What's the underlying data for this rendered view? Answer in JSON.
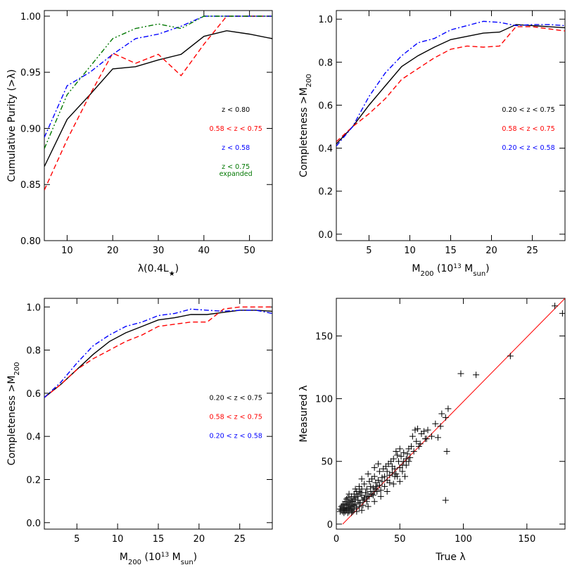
{
  "chart_data": [
    {
      "type": "line",
      "xlim": [
        5,
        55
      ],
      "ylim": [
        0.8,
        1.005
      ],
      "xticks": [
        10,
        20,
        30,
        40,
        50
      ],
      "yticks": [
        0.8,
        0.85,
        0.9,
        0.95,
        1.0
      ],
      "ytick_decimals": 2,
      "xlabel": "λ(0.4L*)",
      "ylabel": "Cumulative Purity (>λ)",
      "series": [
        {
          "name": "z < 0.80",
          "color": "#000000",
          "dash": "",
          "x": [
            5,
            10,
            15,
            20,
            25,
            30,
            35,
            40,
            45,
            50,
            55
          ],
          "y": [
            0.866,
            0.908,
            0.93,
            0.953,
            0.955,
            0.961,
            0.966,
            0.982,
            0.987,
            0.984,
            0.98
          ]
        },
        {
          "name": "0.58 < z < 0.75",
          "color": "#ff0000",
          "dash": "7,4",
          "x": [
            5,
            10,
            15,
            20,
            25,
            30,
            35,
            40,
            45,
            50,
            55
          ],
          "y": [
            0.845,
            0.89,
            0.93,
            0.967,
            0.958,
            0.966,
            0.947,
            0.975,
            1.0,
            1.0,
            1.0
          ]
        },
        {
          "name": "z < 0.58",
          "color": "#0000ff",
          "dash": "7,3,2,3",
          "x": [
            5,
            10,
            15,
            20,
            25,
            30,
            35,
            40,
            45,
            50,
            55
          ],
          "y": [
            0.892,
            0.938,
            0.95,
            0.966,
            0.98,
            0.984,
            0.991,
            1.0,
            1.0,
            1.0,
            1.0
          ]
        },
        {
          "name": "z < 0.75 expanded",
          "color": "#007700",
          "dash": "7,3,2,3,2,3",
          "x": [
            5,
            10,
            15,
            20,
            25,
            30,
            35,
            40,
            45,
            50,
            55
          ],
          "y": [
            0.882,
            0.93,
            0.955,
            0.98,
            0.989,
            0.993,
            0.989,
            1.0,
            1.0,
            1.0,
            1.0
          ]
        }
      ],
      "legend": [
        {
          "text": "z < 0.80",
          "color": "#000000"
        },
        {
          "text": "0.58 < z < 0.75",
          "color": "#ff0000"
        },
        {
          "text": "z < 0.58",
          "color": "#0000ff"
        },
        {
          "text": "z < 0.75",
          "text2": "expanded",
          "color": "#007700"
        }
      ]
    },
    {
      "type": "line",
      "xlim": [
        1,
        29
      ],
      "ylim": [
        -0.03,
        1.04
      ],
      "xticks": [
        5,
        10,
        15,
        20,
        25
      ],
      "yticks": [
        0.0,
        0.2,
        0.4,
        0.6,
        0.8,
        1.0
      ],
      "ytick_decimals": 1,
      "xlabel": "M200 (10^13 Msun)",
      "ylabel": "Completeness >M200",
      "series": [
        {
          "name": "0.20 < z < 0.75",
          "color": "#000000",
          "dash": "",
          "x": [
            1,
            3,
            5,
            7,
            9,
            11,
            13,
            15,
            17,
            19,
            21,
            23,
            25,
            27,
            29
          ],
          "y": [
            0.42,
            0.5,
            0.6,
            0.69,
            0.78,
            0.83,
            0.87,
            0.905,
            0.92,
            0.935,
            0.94,
            0.975,
            0.97,
            0.965,
            0.96
          ]
        },
        {
          "name": "0.58 < z < 0.75",
          "color": "#ff0000",
          "dash": "7,4",
          "x": [
            1,
            3,
            5,
            7,
            9,
            11,
            13,
            15,
            17,
            19,
            21,
            23,
            25,
            27,
            29
          ],
          "y": [
            0.43,
            0.5,
            0.56,
            0.63,
            0.72,
            0.77,
            0.82,
            0.86,
            0.875,
            0.87,
            0.875,
            0.965,
            0.965,
            0.955,
            0.945
          ]
        },
        {
          "name": "0.20 < z < 0.58",
          "color": "#0000ff",
          "dash": "7,3,2,3",
          "x": [
            1,
            3,
            5,
            7,
            9,
            11,
            13,
            15,
            17,
            19,
            21,
            23,
            25,
            27,
            29
          ],
          "y": [
            0.41,
            0.5,
            0.64,
            0.75,
            0.83,
            0.89,
            0.91,
            0.95,
            0.97,
            0.99,
            0.985,
            0.97,
            0.975,
            0.975,
            0.97
          ]
        }
      ],
      "legend": [
        {
          "text": "0.20 < z < 0.75",
          "color": "#000000"
        },
        {
          "text": "0.58 < z < 0.75",
          "color": "#ff0000"
        },
        {
          "text": "0.20 < z < 0.58",
          "color": "#0000ff"
        }
      ]
    },
    {
      "type": "line",
      "xlim": [
        1,
        29
      ],
      "ylim": [
        -0.03,
        1.04
      ],
      "xticks": [
        5,
        10,
        15,
        20,
        25
      ],
      "yticks": [
        0.0,
        0.2,
        0.4,
        0.6,
        0.8,
        1.0
      ],
      "ytick_decimals": 1,
      "xlabel": "M200 (10^13 Msun)",
      "ylabel": "Completeness >M200",
      "series": [
        {
          "name": "0.20 < z < 0.75",
          "color": "#000000",
          "dash": "",
          "x": [
            1,
            3,
            5,
            7,
            9,
            11,
            13,
            15,
            17,
            19,
            21,
            23,
            25,
            27,
            29
          ],
          "y": [
            0.58,
            0.64,
            0.71,
            0.78,
            0.84,
            0.88,
            0.91,
            0.94,
            0.95,
            0.965,
            0.965,
            0.975,
            0.985,
            0.985,
            0.98
          ]
        },
        {
          "name": "0.58 < z < 0.75",
          "color": "#ff0000",
          "dash": "7,4",
          "x": [
            1,
            3,
            5,
            7,
            9,
            11,
            13,
            15,
            17,
            19,
            21,
            23,
            25,
            27,
            29
          ],
          "y": [
            0.58,
            0.64,
            0.71,
            0.76,
            0.8,
            0.84,
            0.87,
            0.91,
            0.92,
            0.93,
            0.93,
            0.99,
            1.0,
            1.0,
            1.0
          ]
        },
        {
          "name": "0.20 < z < 0.58",
          "color": "#0000ff",
          "dash": "7,3,2,3",
          "x": [
            1,
            3,
            5,
            7,
            9,
            11,
            13,
            15,
            17,
            19,
            21,
            23,
            25,
            27,
            29
          ],
          "y": [
            0.58,
            0.65,
            0.74,
            0.82,
            0.87,
            0.91,
            0.93,
            0.96,
            0.97,
            0.99,
            0.985,
            0.98,
            0.985,
            0.985,
            0.97
          ]
        }
      ],
      "legend": [
        {
          "text": "0.20 < z < 0.75",
          "color": "#000000"
        },
        {
          "text": "0.58 < z < 0.75",
          "color": "#ff0000"
        },
        {
          "text": "0.20 < z < 0.58",
          "color": "#0000ff"
        }
      ]
    },
    {
      "type": "scatter",
      "xlim": [
        0,
        180
      ],
      "ylim": [
        -4,
        180
      ],
      "xticks": [
        0,
        50,
        100,
        150
      ],
      "yticks": [
        0,
        50,
        100,
        150
      ],
      "ytick_decimals": 0,
      "xlabel": "True λ",
      "ylabel": "Measured λ",
      "marker": "+",
      "color": "#000000",
      "reference_line": {
        "x": [
          5,
          180
        ],
        "y": [
          0,
          180
        ],
        "color": "#ff0000"
      },
      "points": [
        [
          172,
          174
        ],
        [
          178,
          168
        ],
        [
          137,
          134
        ],
        [
          110,
          119
        ],
        [
          98,
          120
        ],
        [
          88,
          92
        ],
        [
          82,
          78
        ],
        [
          83,
          88
        ],
        [
          86,
          85
        ],
        [
          80,
          69
        ],
        [
          87,
          58
        ],
        [
          86,
          19
        ],
        [
          75,
          70
        ],
        [
          70,
          68
        ],
        [
          66,
          64
        ],
        [
          64,
          76
        ],
        [
          62,
          75
        ],
        [
          60,
          70
        ],
        [
          56,
          56
        ],
        [
          58,
          53
        ],
        [
          52,
          47
        ],
        [
          50,
          60
        ],
        [
          48,
          55
        ],
        [
          55,
          47
        ],
        [
          54,
          38
        ],
        [
          50,
          34
        ],
        [
          47,
          40
        ],
        [
          46,
          38
        ],
        [
          44,
          41
        ],
        [
          42,
          33
        ],
        [
          40,
          35
        ],
        [
          38,
          30
        ],
        [
          36,
          37
        ],
        [
          35,
          27
        ],
        [
          32,
          30
        ],
        [
          30,
          26
        ],
        [
          28,
          24
        ],
        [
          27,
          30
        ],
        [
          25,
          22
        ],
        [
          24,
          18
        ],
        [
          22,
          21
        ],
        [
          21,
          15
        ],
        [
          20,
          23
        ],
        [
          19,
          17
        ],
        [
          18,
          14
        ],
        [
          17,
          19
        ],
        [
          16,
          13
        ],
        [
          15,
          16
        ],
        [
          14,
          12
        ],
        [
          13,
          15
        ],
        [
          12,
          11
        ],
        [
          11,
          14
        ],
        [
          10,
          10
        ],
        [
          9,
          13
        ],
        [
          8,
          11
        ],
        [
          7,
          10
        ],
        [
          6,
          12
        ],
        [
          5,
          10
        ],
        [
          5,
          13
        ],
        [
          4,
          11
        ],
        [
          3,
          12
        ],
        [
          6,
          9
        ],
        [
          9,
          9
        ],
        [
          12,
          9
        ],
        [
          8,
          15
        ],
        [
          10,
          17
        ],
        [
          14,
          20
        ],
        [
          16,
          24
        ],
        [
          12,
          22
        ],
        [
          18,
          26
        ],
        [
          20,
          28
        ],
        [
          22,
          32
        ],
        [
          24,
          28
        ],
        [
          26,
          34
        ],
        [
          28,
          36
        ],
        [
          30,
          38
        ],
        [
          31,
          33
        ],
        [
          33,
          35
        ],
        [
          34,
          42
        ],
        [
          37,
          44
        ],
        [
          39,
          46
        ],
        [
          41,
          48
        ],
        [
          43,
          50
        ],
        [
          45,
          52
        ],
        [
          47,
          58
        ],
        [
          49,
          50
        ],
        [
          51,
          54
        ],
        [
          53,
          57
        ],
        [
          57,
          60
        ],
        [
          59,
          62
        ],
        [
          61,
          58
        ],
        [
          63,
          66
        ],
        [
          67,
          72
        ],
        [
          69,
          74
        ],
        [
          72,
          75
        ],
        [
          78,
          80
        ],
        [
          65,
          62
        ],
        [
          71,
          68
        ],
        [
          57,
          50
        ],
        [
          52,
          42
        ],
        [
          15,
          28
        ],
        [
          20,
          36
        ],
        [
          25,
          40
        ],
        [
          30,
          45
        ],
        [
          33,
          48
        ],
        [
          10,
          24
        ],
        [
          8,
          20
        ],
        [
          6,
          16
        ],
        [
          40,
          26
        ],
        [
          45,
          32
        ],
        [
          48,
          38
        ],
        [
          35,
          22
        ],
        [
          30,
          18
        ],
        [
          25,
          14
        ],
        [
          20,
          11
        ],
        [
          16,
          10
        ],
        [
          13,
          10
        ],
        [
          11,
          12
        ],
        [
          7,
          13
        ],
        [
          9,
          16
        ],
        [
          11,
          19
        ],
        [
          13,
          18
        ],
        [
          15,
          21
        ],
        [
          17,
          22
        ],
        [
          19,
          25
        ],
        [
          21,
          19
        ],
        [
          23,
          25
        ],
        [
          26,
          22
        ],
        [
          29,
          29
        ],
        [
          32,
          26
        ],
        [
          34,
          31
        ],
        [
          36,
          34
        ],
        [
          38,
          38
        ],
        [
          40,
          42
        ],
        [
          42,
          39
        ],
        [
          44,
          46
        ],
        [
          46,
          44
        ],
        [
          50,
          45
        ],
        [
          53,
          50
        ],
        [
          55,
          52
        ],
        [
          7,
          18
        ],
        [
          5,
          15
        ],
        [
          4,
          14
        ],
        [
          3,
          10
        ],
        [
          6,
          11
        ],
        [
          8,
          12
        ],
        [
          10,
          13
        ],
        [
          12,
          14
        ],
        [
          14,
          15
        ],
        [
          18,
          17
        ],
        [
          22,
          20
        ],
        [
          24,
          22
        ],
        [
          27,
          26
        ],
        [
          29,
          23
        ],
        [
          31,
          28
        ],
        [
          16,
          26
        ],
        [
          18,
          30
        ],
        [
          14,
          24
        ],
        [
          12,
          18
        ],
        [
          9,
          21
        ]
      ]
    }
  ]
}
